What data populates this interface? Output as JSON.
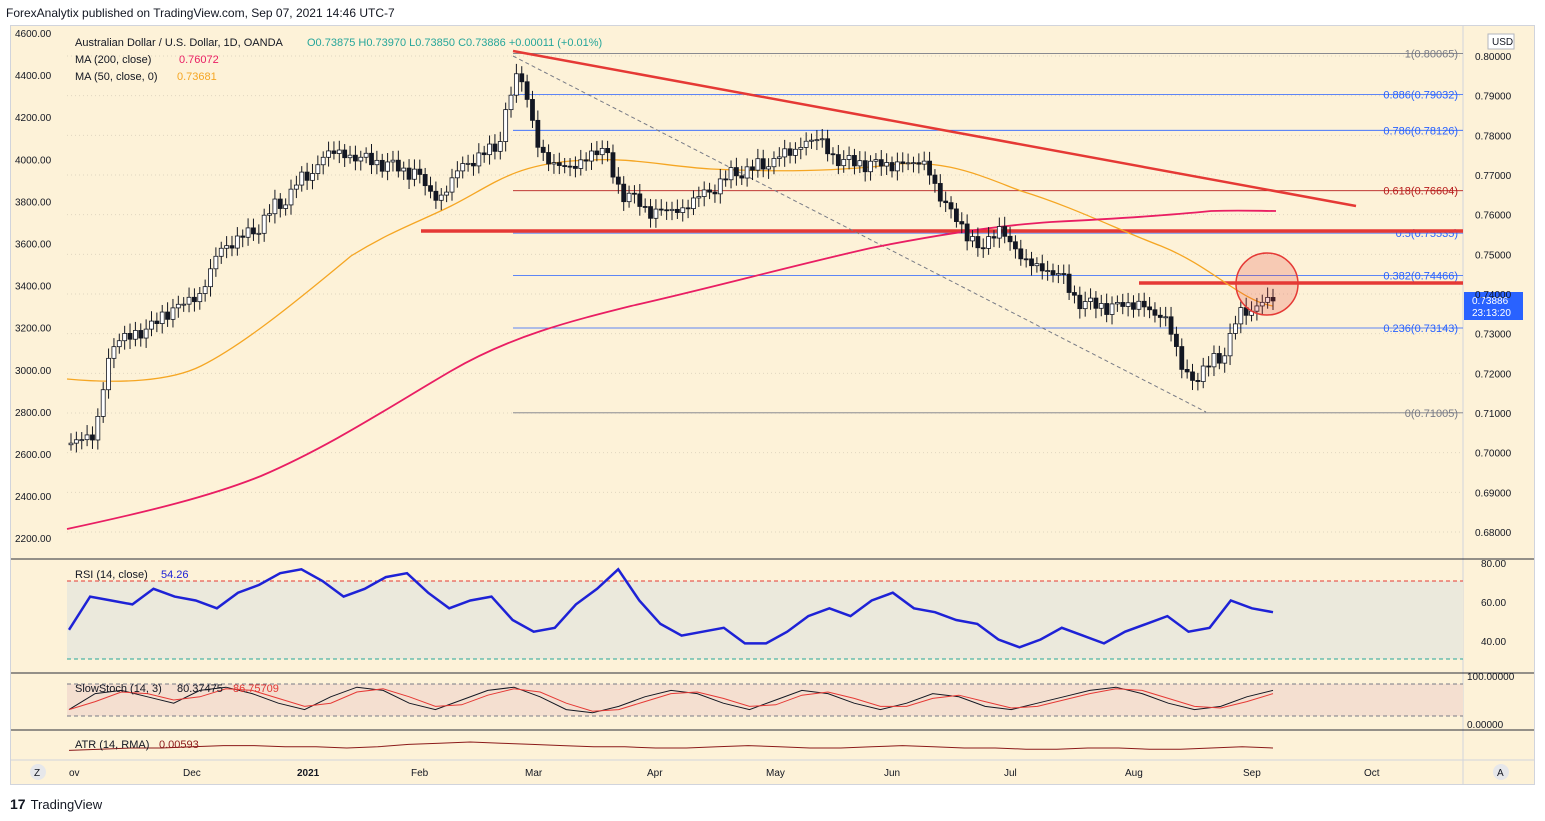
{
  "header": {
    "published": "ForexAnalytix published on TradingView.com, Sep 07, 2021 14:46 UTC-7"
  },
  "footer": {
    "brand": "TradingView",
    "brand_mark": "17"
  },
  "chart": {
    "symbol_line": "Australian Dollar / U.S. Dollar, 1D, OANDA",
    "ohlc": "O0.73875  H0.73970  L0.73850  C0.73886  +0.00011 (+0.01%)",
    "ma200": {
      "label": "MA (200, close)",
      "value": "0.76072",
      "color": "#e91e63"
    },
    "ma50": {
      "label": "MA (50, close, 0)",
      "value": "0.73681",
      "color": "#f5a623"
    },
    "currency": "USD",
    "price_badge": {
      "price": "0.73886",
      "countdown": "23:13:20",
      "color": "#2962ff"
    },
    "axis_buttons": {
      "left": "Z",
      "right": "A"
    }
  },
  "rsi": {
    "label": "RSI (14, close)",
    "value": "54.26",
    "color": "#1e22d6",
    "ticks": [
      "80.00",
      "60.00",
      "40.00"
    ]
  },
  "stoch": {
    "label": "SlowStoch (14, 3)",
    "k": "80.37475",
    "d": "86.75709",
    "ticks": [
      "100.00000",
      "0.00000"
    ]
  },
  "atr": {
    "label": "ATR (14, RMA)",
    "value": "0.00593"
  },
  "chart_data": {
    "type": "candlestick",
    "title": "Australian Dollar / U.S. Dollar, 1D, OANDA",
    "x_ticks": [
      "ov",
      "Dec",
      "2021",
      "Feb",
      "Mar",
      "Apr",
      "May",
      "Jun",
      "Jul",
      "Aug",
      "Sep",
      "Oct"
    ],
    "y_right_ticks": [
      "0.80000",
      "0.79000",
      "0.78000",
      "0.77000",
      "0.76000",
      "0.75000",
      "0.74000",
      "0.73000",
      "0.72000",
      "0.71000",
      "0.70000",
      "0.69000",
      "0.68000"
    ],
    "y_left_ticks": [
      "4600.00",
      "4400.00",
      "4200.00",
      "4000.00",
      "3800.00",
      "3600.00",
      "3400.00",
      "3200.00",
      "3000.00",
      "2800.00",
      "2600.00",
      "2400.00",
      "2200.00"
    ],
    "fibonacci": [
      {
        "ratio": "1",
        "price": "0.80065",
        "label": "1(0.80065)"
      },
      {
        "ratio": "0.886",
        "price": "0.79032",
        "label": "0.886(0.79032)"
      },
      {
        "ratio": "0.786",
        "price": "0.78126",
        "label": "0.786(0.78126)"
      },
      {
        "ratio": "0.618",
        "price": "0.76604",
        "label": "0.618(0.76604)"
      },
      {
        "ratio": "0.5",
        "price": "0.75535",
        "label": "0.5(0.75535)"
      },
      {
        "ratio": "0.382",
        "price": "0.74466",
        "label": "0.382(0.74466)"
      },
      {
        "ratio": "0.236",
        "price": "0.73143",
        "label": "0.236(0.73143)"
      },
      {
        "ratio": "0",
        "price": "0.71005",
        "label": "0(0.71005)"
      }
    ],
    "close_series": [
      {
        "date": "2020-11-02",
        "close": 0.704
      },
      {
        "date": "2020-11-09",
        "close": 0.728
      },
      {
        "date": "2020-11-16",
        "close": 0.73
      },
      {
        "date": "2020-11-23",
        "close": 0.735
      },
      {
        "date": "2020-11-30",
        "close": 0.739
      },
      {
        "date": "2020-12-07",
        "close": 0.752
      },
      {
        "date": "2020-12-14",
        "close": 0.756
      },
      {
        "date": "2020-12-21",
        "close": 0.763
      },
      {
        "date": "2020-12-28",
        "close": 0.77
      },
      {
        "date": "2021-01-04",
        "close": 0.776
      },
      {
        "date": "2021-01-11",
        "close": 0.774
      },
      {
        "date": "2021-01-18",
        "close": 0.772
      },
      {
        "date": "2021-01-25",
        "close": 0.77
      },
      {
        "date": "2021-02-01",
        "close": 0.764
      },
      {
        "date": "2021-02-08",
        "close": 0.773
      },
      {
        "date": "2021-02-15",
        "close": 0.777
      },
      {
        "date": "2021-02-22",
        "close": 0.795
      },
      {
        "date": "2021-03-01",
        "close": 0.774
      },
      {
        "date": "2021-03-08",
        "close": 0.772
      },
      {
        "date": "2021-03-15",
        "close": 0.776
      },
      {
        "date": "2021-03-22",
        "close": 0.764
      },
      {
        "date": "2021-03-29",
        "close": 0.76
      },
      {
        "date": "2021-04-05",
        "close": 0.761
      },
      {
        "date": "2021-04-12",
        "close": 0.766
      },
      {
        "date": "2021-04-19",
        "close": 0.771
      },
      {
        "date": "2021-04-26",
        "close": 0.773
      },
      {
        "date": "2021-05-03",
        "close": 0.776
      },
      {
        "date": "2021-05-10",
        "close": 0.779
      },
      {
        "date": "2021-05-17",
        "close": 0.773
      },
      {
        "date": "2021-05-24",
        "close": 0.772
      },
      {
        "date": "2021-05-31",
        "close": 0.772
      },
      {
        "date": "2021-06-07",
        "close": 0.773
      },
      {
        "date": "2021-06-14",
        "close": 0.762
      },
      {
        "date": "2021-06-21",
        "close": 0.753
      },
      {
        "date": "2021-06-28",
        "close": 0.756
      },
      {
        "date": "2021-07-05",
        "close": 0.748
      },
      {
        "date": "2021-07-12",
        "close": 0.745
      },
      {
        "date": "2021-07-19",
        "close": 0.737
      },
      {
        "date": "2021-07-26",
        "close": 0.736
      },
      {
        "date": "2021-08-02",
        "close": 0.737
      },
      {
        "date": "2021-08-09",
        "close": 0.734
      },
      {
        "date": "2021-08-16",
        "close": 0.719
      },
      {
        "date": "2021-08-23",
        "close": 0.724
      },
      {
        "date": "2021-08-30",
        "close": 0.736
      },
      {
        "date": "2021-09-06",
        "close": 0.7389
      }
    ]
  }
}
